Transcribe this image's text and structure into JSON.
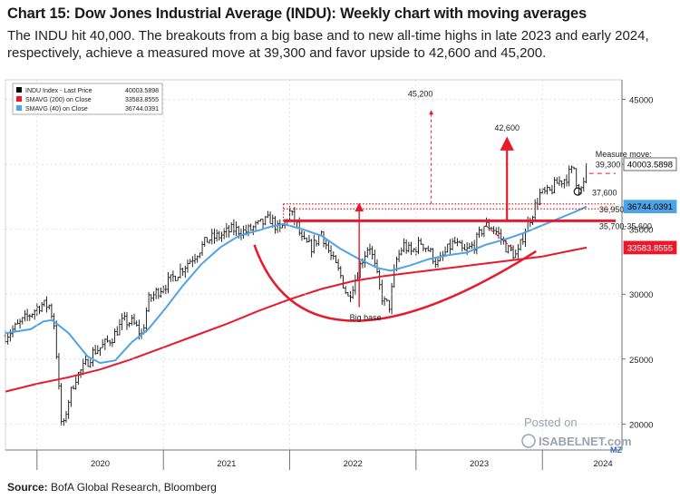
{
  "header": {
    "title": "Chart 15: Dow Jones Industrial Average (INDU): Weekly chart with moving averages",
    "subtitle": "The INDU hit 40,000. The breakouts from a big base and to new all-time highs in late 2023 and early 2024, respectively, achieve a measured move at 39,300 and favor upside to 42,600 and 45,200."
  },
  "footer": {
    "source_label": "Source:",
    "source_text": " BofA Global Research, Bloomberg"
  },
  "watermark": {
    "line1": "Posted on",
    "line2": "ISABELNET.com",
    "mark": "MZ"
  },
  "chart_data": {
    "type": "line",
    "x_ticks": [
      "2020",
      "2021",
      "2022",
      "2023",
      "2024"
    ],
    "y_ticks": [
      "20000",
      "25000",
      "30000",
      "35000",
      "40000",
      "45000"
    ],
    "ylim": [
      18000,
      46500
    ],
    "legend": {
      "placement": "top-left",
      "entries": [
        {
          "name": "INDU Index - Last Price",
          "value": "40003.5898",
          "color": "#000000"
        },
        {
          "name": "SMAVG (200)  on Close",
          "value": "33583.8555",
          "color": "#e8192c"
        },
        {
          "name": "SMAVG (40)  on Close",
          "value": "36744.0391",
          "color": "#4da3e6"
        }
      ]
    },
    "last_value_tags": [
      {
        "label": "40003.5898",
        "value": 40003.59,
        "bg": "#ffffff",
        "fg": "#000000"
      },
      {
        "label": "36744.0391",
        "value": 36744.04,
        "bg": "#4da3e6",
        "fg": "#000000"
      },
      {
        "label": "33583.8555",
        "value": 33583.86,
        "bg": "#e8192c",
        "fg": "#ffffff"
      }
    ],
    "price": [
      [
        2019.75,
        26800
      ],
      [
        2019.85,
        27600
      ],
      [
        2019.95,
        28500
      ],
      [
        2020.03,
        29200
      ],
      [
        2020.1,
        29100
      ],
      [
        2020.14,
        27500
      ],
      [
        2020.17,
        23000
      ],
      [
        2020.2,
        19200
      ],
      [
        2020.24,
        21500
      ],
      [
        2020.3,
        23500
      ],
      [
        2020.38,
        24500
      ],
      [
        2020.45,
        25600
      ],
      [
        2020.52,
        26000
      ],
      [
        2020.6,
        26700
      ],
      [
        2020.68,
        27900
      ],
      [
        2020.76,
        27800
      ],
      [
        2020.83,
        26800
      ],
      [
        2020.88,
        29500
      ],
      [
        2020.95,
        30200
      ],
      [
        2021.05,
        31000
      ],
      [
        2021.15,
        32000
      ],
      [
        2021.25,
        33000
      ],
      [
        2021.35,
        34200
      ],
      [
        2021.45,
        34500
      ],
      [
        2021.55,
        35000
      ],
      [
        2021.65,
        34800
      ],
      [
        2021.75,
        35300
      ],
      [
        2021.85,
        35800
      ],
      [
        2021.92,
        34800
      ],
      [
        2022.0,
        36300
      ],
      [
        2022.05,
        35500
      ],
      [
        2022.1,
        34000
      ],
      [
        2022.18,
        33600
      ],
      [
        2022.25,
        34800
      ],
      [
        2022.32,
        33000
      ],
      [
        2022.4,
        31500
      ],
      [
        2022.46,
        29700
      ],
      [
        2022.52,
        31200
      ],
      [
        2022.58,
        32800
      ],
      [
        2022.63,
        33900
      ],
      [
        2022.68,
        31800
      ],
      [
        2022.74,
        29400
      ],
      [
        2022.79,
        29100
      ],
      [
        2022.84,
        32500
      ],
      [
        2022.9,
        33800
      ],
      [
        2022.96,
        33200
      ],
      [
        2023.04,
        34000
      ],
      [
        2023.1,
        33400
      ],
      [
        2023.17,
        32300
      ],
      [
        2023.24,
        33300
      ],
      [
        2023.3,
        34000
      ],
      [
        2023.38,
        33200
      ],
      [
        2023.46,
        33800
      ],
      [
        2023.54,
        35300
      ],
      [
        2023.6,
        35200
      ],
      [
        2023.66,
        34500
      ],
      [
        2023.72,
        33500
      ],
      [
        2023.8,
        32900
      ],
      [
        2023.86,
        34900
      ],
      [
        2023.92,
        36200
      ],
      [
        2023.98,
        37700
      ],
      [
        2024.05,
        37800
      ],
      [
        2024.12,
        38600
      ],
      [
        2024.18,
        38900
      ],
      [
        2024.25,
        39700
      ],
      [
        2024.28,
        38200
      ],
      [
        2024.32,
        38000
      ],
      [
        2024.35,
        40003
      ]
    ],
    "sma40": [
      [
        2019.75,
        27000
      ],
      [
        2019.95,
        27300
      ],
      [
        2020.05,
        27900
      ],
      [
        2020.12,
        28000
      ],
      [
        2020.25,
        27000
      ],
      [
        2020.4,
        25200
      ],
      [
        2020.5,
        24700
      ],
      [
        2020.62,
        24900
      ],
      [
        2020.75,
        26300
      ],
      [
        2020.88,
        27300
      ],
      [
        2021.0,
        28700
      ],
      [
        2021.15,
        30600
      ],
      [
        2021.3,
        32300
      ],
      [
        2021.45,
        33600
      ],
      [
        2021.6,
        34500
      ],
      [
        2021.75,
        34900
      ],
      [
        2021.85,
        35200
      ],
      [
        2021.95,
        35400
      ],
      [
        2022.1,
        35000
      ],
      [
        2022.25,
        34500
      ],
      [
        2022.4,
        33500
      ],
      [
        2022.55,
        32700
      ],
      [
        2022.7,
        32000
      ],
      [
        2022.8,
        31800
      ],
      [
        2022.95,
        32200
      ],
      [
        2023.1,
        32700
      ],
      [
        2023.25,
        33000
      ],
      [
        2023.4,
        33200
      ],
      [
        2023.55,
        33800
      ],
      [
        2023.7,
        34200
      ],
      [
        2023.85,
        34700
      ],
      [
        2023.95,
        35100
      ],
      [
        2024.1,
        35700
      ],
      [
        2024.25,
        36300
      ],
      [
        2024.35,
        36744
      ]
    ],
    "sma200": [
      [
        2019.75,
        22500
      ],
      [
        2020.0,
        23100
      ],
      [
        2020.25,
        23600
      ],
      [
        2020.5,
        24200
      ],
      [
        2020.75,
        25000
      ],
      [
        2021.0,
        25900
      ],
      [
        2021.25,
        26800
      ],
      [
        2021.5,
        27700
      ],
      [
        2021.75,
        28700
      ],
      [
        2022.0,
        29600
      ],
      [
        2022.25,
        30400
      ],
      [
        2022.5,
        31000
      ],
      [
        2022.75,
        31400
      ],
      [
        2023.0,
        31700
      ],
      [
        2023.25,
        32000
      ],
      [
        2023.5,
        32300
      ],
      [
        2023.75,
        32600
      ],
      [
        2024.0,
        32900
      ],
      [
        2024.2,
        33300
      ],
      [
        2024.35,
        33584
      ]
    ],
    "levels": [
      {
        "name": "measure-move-line",
        "value": 39300,
        "x_from": 2024.37,
        "x_to": 2024.58,
        "style": "dashed",
        "color": "#e8192c"
      },
      {
        "name": "dotted-zone-top",
        "value": 36950,
        "x_from": 2021.95,
        "x_to": 2024.58,
        "style": "dotted",
        "color": "#e8192c"
      },
      {
        "name": "dotted-zone-bottom",
        "value": 36565,
        "x_from": 2021.95,
        "x_to": 2024.58,
        "style": "dotted",
        "color": "#e8192c"
      },
      {
        "name": "support-band",
        "value": 35650,
        "x_from": 2021.95,
        "x_to": 2024.58,
        "style": "solid",
        "color": "#e8192c"
      }
    ],
    "annotations": [
      {
        "text": "45,200",
        "x": 2023.12,
        "y": 45200,
        "arrow_from": 36950,
        "dashed": true
      },
      {
        "text": "42,600",
        "x": 2023.72,
        "y": 42600,
        "arrow_from": 35650,
        "dashed": false
      },
      {
        "text": "Measure move:",
        "x": 2024.42,
        "y": 40550
      },
      {
        "text": "39,300",
        "x": 2024.42,
        "y": 39750
      },
      {
        "text": "37,600",
        "x": 2024.35,
        "y": 37600
      },
      {
        "text": "36,950-36,565",
        "x": 2024.45,
        "y": 36300
      },
      {
        "text": "35,700-35,600",
        "x": 2024.45,
        "y": 35000
      },
      {
        "text": "Big base",
        "x": 2022.6,
        "y": 28000
      }
    ]
  }
}
